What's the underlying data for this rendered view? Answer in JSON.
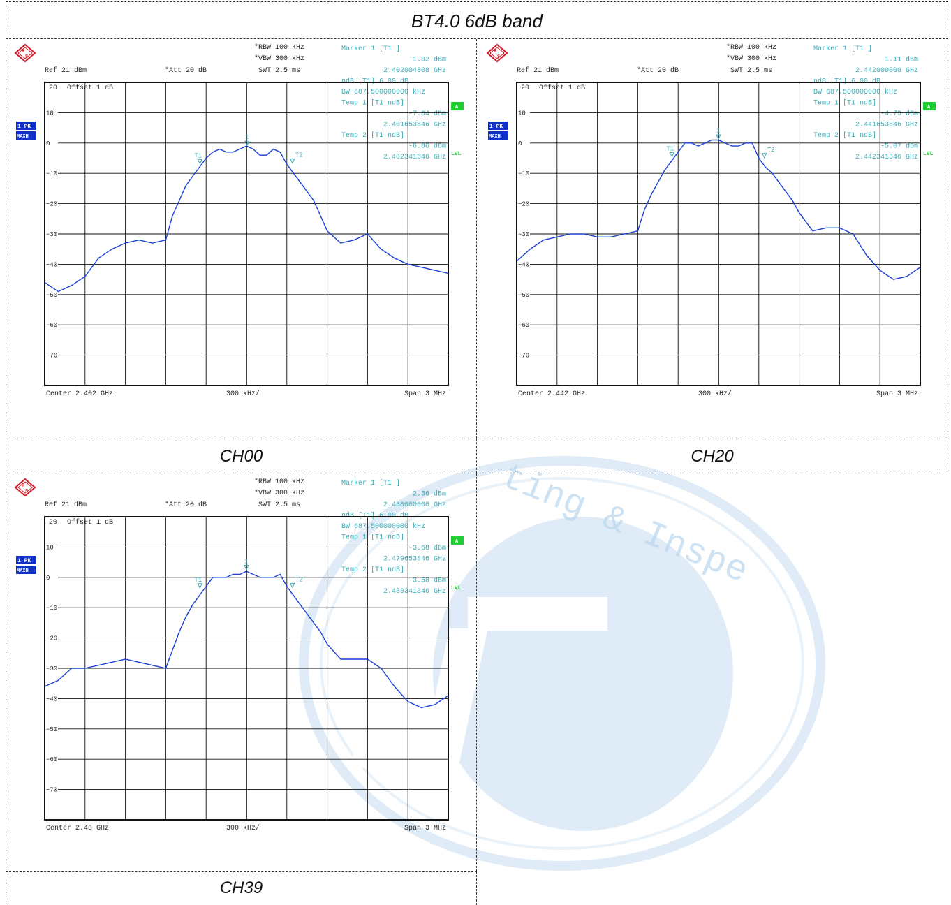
{
  "page_title": "BT4.0 6dB band",
  "colors": {
    "trace": "#1a3fd6",
    "readout": "#3aa9b3",
    "grid": "#111111",
    "badge_blue": "#1030c8",
    "badge_green": "#22cc33",
    "logo_red": "#d21e2b",
    "watermark": "#b9d6ee"
  },
  "watermark": {
    "text": "ting & Inspe"
  },
  "panels": [
    {
      "label": "CH00",
      "header": {
        "rbw": "RBW 100 kHz",
        "vbw": "VBW 300 kHz",
        "swt": "SWT 2.5 ms",
        "ref": "Ref  21 dBm",
        "att": "Att  20 dB",
        "offset": "Offset  1 dB",
        "top_level": "20",
        "badge_trace": "1 PK",
        "badge_mode": "MAXH",
        "badge_a": "A",
        "lvl": "LVL"
      },
      "readout": [
        "Marker 1 [T1 ]",
        "-1.02 dBm",
        "2.402004808 GHz",
        "ndB [T1]      6.00 dB",
        "BW 687.500000000 kHz",
        "Temp 1 [T1 ndB]",
        "-7.04 dBm",
        "2.401653846 GHz",
        "Temp 2 [T1 ndB]",
        "-6.86 dBm",
        "2.402341346 GHz"
      ],
      "footer": {
        "center": "Center  2.402 GHz",
        "div": "300 kHz/",
        "span": "Span  3 MHz"
      },
      "chart_data": {
        "type": "line",
        "xlabel": "",
        "ylabel": "",
        "x_unit": "MHz",
        "y_unit": "dBm",
        "xlim": [
          2400.5,
          2403.5
        ],
        "ylim": [
          -80,
          20
        ],
        "yticks": [
          10,
          0,
          -10,
          -20,
          -30,
          -40,
          -50,
          -60,
          -70
        ],
        "grid": true,
        "series": [
          {
            "x": [
              2400.5,
              2400.6,
              2400.7,
              2400.8,
              2400.9,
              2401.0,
              2401.1,
              2401.2,
              2401.3,
              2401.4,
              2401.45,
              2401.5,
              2401.55,
              2401.6,
              2401.65,
              2401.7,
              2401.75,
              2401.8,
              2401.85,
              2401.9,
              2401.95,
              2402.0,
              2402.05,
              2402.1,
              2402.15,
              2402.2,
              2402.25,
              2402.3,
              2402.35,
              2402.4,
              2402.45,
              2402.5,
              2402.55,
              2402.6,
              2402.7,
              2402.8,
              2402.9,
              2403.0,
              2403.1,
              2403.2,
              2403.3,
              2403.4,
              2403.5
            ],
            "y": [
              -46,
              -49,
              -47,
              -44,
              -38,
              -35,
              -33,
              -32,
              -33,
              -32,
              -24,
              -19,
              -14,
              -11,
              -8,
              -5,
              -3,
              -2,
              -3,
              -3,
              -2,
              -1,
              -2,
              -4,
              -4,
              -2,
              -3,
              -7,
              -10,
              -13,
              -16,
              -19,
              -24,
              -29,
              -33,
              -32,
              -30,
              -35,
              -38,
              -40,
              -41,
              -42,
              -43
            ]
          }
        ],
        "markers": [
          {
            "label": "1",
            "x": 2402.004808,
            "y": -1.02
          },
          {
            "label": "T1",
            "x": 2401.653846,
            "y": -7.04
          },
          {
            "label": "T2",
            "x": 2402.341346,
            "y": -6.86
          }
        ]
      }
    },
    {
      "label": "CH20",
      "header": {
        "rbw": "RBW 100 kHz",
        "vbw": "VBW 300 kHz",
        "swt": "SWT 2.5 ms",
        "ref": "Ref  21 dBm",
        "att": "Att  20 dB",
        "offset": "Offset  1 dB",
        "top_level": "20",
        "badge_trace": "1 PK",
        "badge_mode": "MAXH",
        "badge_a": "A",
        "lvl": "LVL"
      },
      "readout": [
        "Marker 1 [T1 ]",
        "1.11 dBm",
        "2.442000000 GHz",
        "ndB [T1]      6.00 dB",
        "BW 687.500000000 kHz",
        "Temp 1 [T1 ndB]",
        "-4.73 dBm",
        "2.441653846 GHz",
        "Temp 2 [T1 ndB]",
        "-5.07 dBm",
        "2.442341346 GHz"
      ],
      "footer": {
        "center": "Center  2.442 GHz",
        "div": "300 kHz/",
        "span": "Span  3 MHz"
      },
      "chart_data": {
        "type": "line",
        "xlabel": "",
        "ylabel": "",
        "x_unit": "MHz",
        "y_unit": "dBm",
        "xlim": [
          2440.5,
          2443.5
        ],
        "ylim": [
          -80,
          20
        ],
        "yticks": [
          10,
          0,
          -10,
          -20,
          -30,
          -40,
          -50,
          -60,
          -70
        ],
        "grid": true,
        "series": [
          {
            "x": [
              2440.5,
              2440.6,
              2440.7,
              2440.8,
              2440.9,
              2441.0,
              2441.1,
              2441.2,
              2441.3,
              2441.4,
              2441.45,
              2441.5,
              2441.55,
              2441.6,
              2441.65,
              2441.7,
              2441.75,
              2441.8,
              2441.85,
              2441.9,
              2441.95,
              2442.0,
              2442.05,
              2442.1,
              2442.15,
              2442.2,
              2442.25,
              2442.3,
              2442.35,
              2442.4,
              2442.45,
              2442.5,
              2442.55,
              2442.6,
              2442.7,
              2442.8,
              2442.9,
              2443.0,
              2443.1,
              2443.2,
              2443.3,
              2443.4,
              2443.5
            ],
            "y": [
              -39,
              -35,
              -32,
              -31,
              -30,
              -30,
              -31,
              -31,
              -30,
              -29,
              -22,
              -17,
              -13,
              -9,
              -6,
              -3,
              0,
              0,
              -1,
              0,
              1,
              1,
              0,
              -1,
              -1,
              0,
              0,
              -5,
              -8,
              -10,
              -13,
              -16,
              -19,
              -23,
              -29,
              -28,
              -28,
              -30,
              -37,
              -42,
              -45,
              -44,
              -41
            ]
          }
        ],
        "markers": [
          {
            "label": "1",
            "x": 2442.0,
            "y": 1.11
          },
          {
            "label": "T1",
            "x": 2441.653846,
            "y": -4.73
          },
          {
            "label": "T2",
            "x": 2442.341346,
            "y": -5.07
          }
        ]
      }
    },
    {
      "label": "CH39",
      "header": {
        "rbw": "RBW 100 kHz",
        "vbw": "VBW 300 kHz",
        "swt": "SWT 2.5 ms",
        "ref": "Ref  21 dBm",
        "att": "Att  20 dB",
        "offset": "Offset  1 dB",
        "top_level": "20",
        "badge_trace": "1 PK",
        "badge_mode": "MAXH",
        "badge_a": "A",
        "lvl": "LVL"
      },
      "readout": [
        "Marker 1 [T1 ]",
        "2.36 dBm",
        "2.480000000 GHz",
        "ndB [T1]      6.00 dB",
        "BW 687.500000000 kHz",
        "Temp 1 [T1 ndB]",
        "-3.68 dBm",
        "2.479653846 GHz",
        "Temp 2 [T1 ndB]",
        "-3.58 dBm",
        "2.480341346 GHz"
      ],
      "footer": {
        "center": "Center  2.48 GHz",
        "div": "300 kHz/",
        "span": "Span  3 MHz"
      },
      "chart_data": {
        "type": "line",
        "xlabel": "",
        "ylabel": "",
        "x_unit": "MHz",
        "y_unit": "dBm",
        "xlim": [
          2478.5,
          2481.5
        ],
        "ylim": [
          -80,
          20
        ],
        "yticks": [
          10,
          0,
          -10,
          -20,
          -30,
          -40,
          -50,
          -60,
          -70
        ],
        "grid": true,
        "series": [
          {
            "x": [
              2478.5,
              2478.6,
              2478.7,
              2478.8,
              2478.9,
              2479.0,
              2479.1,
              2479.2,
              2479.3,
              2479.4,
              2479.45,
              2479.5,
              2479.55,
              2479.6,
              2479.65,
              2479.7,
              2479.75,
              2479.8,
              2479.85,
              2479.9,
              2479.95,
              2480.0,
              2480.05,
              2480.1,
              2480.15,
              2480.2,
              2480.25,
              2480.3,
              2480.35,
              2480.4,
              2480.45,
              2480.5,
              2480.55,
              2480.6,
              2480.7,
              2480.8,
              2480.9,
              2481.0,
              2481.1,
              2481.2,
              2481.3,
              2481.4,
              2481.5
            ],
            "y": [
              -36,
              -34,
              -30,
              -30,
              -29,
              -28,
              -27,
              -28,
              -29,
              -30,
              -24,
              -18,
              -13,
              -9,
              -6,
              -3,
              0,
              0,
              0,
              1,
              1,
              2,
              1,
              0,
              0,
              0,
              1,
              -3,
              -6,
              -9,
              -12,
              -15,
              -18,
              -22,
              -27,
              -27,
              -27,
              -30,
              -36,
              -41,
              -43,
              -42,
              -39
            ]
          }
        ],
        "markers": [
          {
            "label": "1",
            "x": 2480.0,
            "y": 2.36
          },
          {
            "label": "T1",
            "x": 2479.653846,
            "y": -3.68
          },
          {
            "label": "T2",
            "x": 2480.341346,
            "y": -3.58
          }
        ]
      }
    }
  ]
}
